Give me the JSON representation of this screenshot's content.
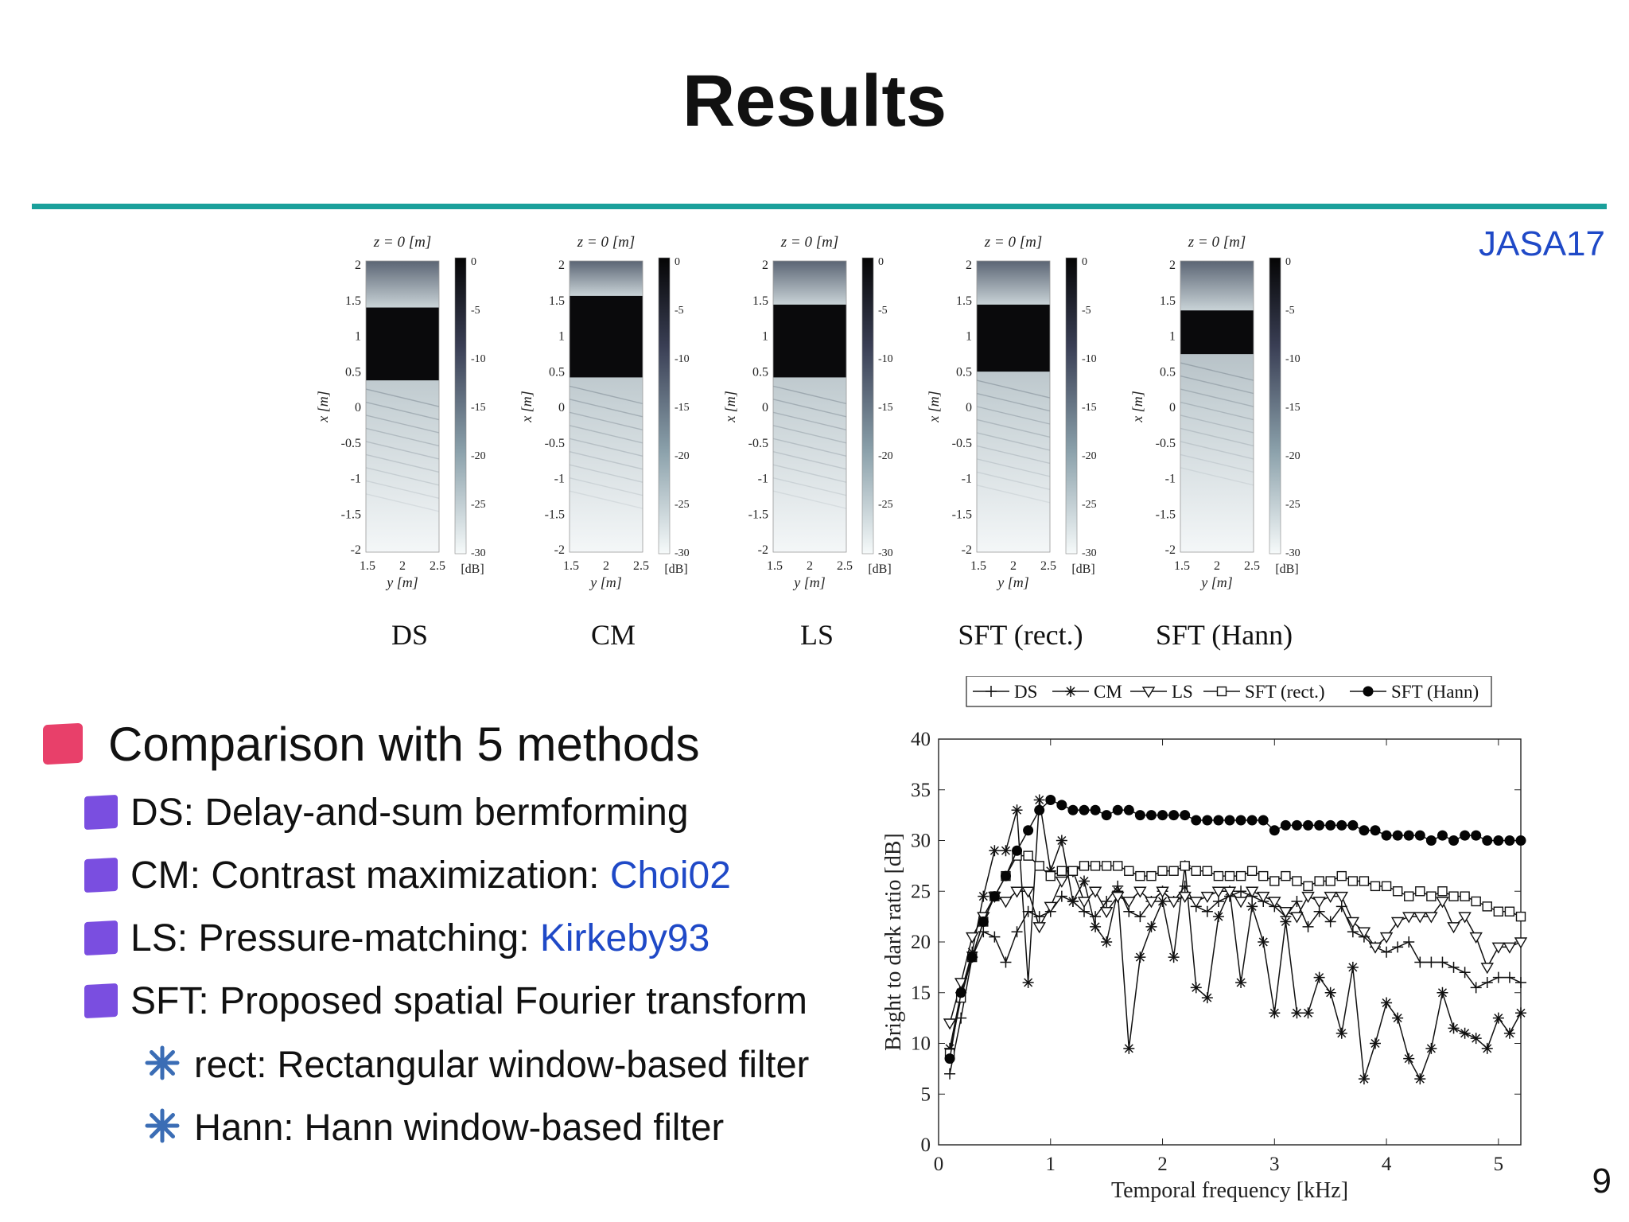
{
  "slide": {
    "title": "Results",
    "reference": "JASA17",
    "page_number": "9"
  },
  "maps": {
    "panel_title": "z = 0 [m]",
    "x_axis_label": "y [m]",
    "y_axis_label": "x [m]",
    "colorbar_unit": "[dB]",
    "x_ticks": [
      "1.5",
      "2",
      "2.5"
    ],
    "y_ticks": [
      "2",
      "1.5",
      "1",
      "0.5",
      "0",
      "-0.5",
      "-1",
      "-1.5",
      "-2"
    ],
    "colorbar_ticks": [
      "0",
      "-5",
      "-10",
      "-15",
      "-20",
      "-25",
      "-30"
    ],
    "methods": [
      "DS",
      "CM",
      "LS",
      "SFT (rect.)",
      "SFT (Hann)"
    ]
  },
  "bullets": {
    "main": "Comparison with 5 methods",
    "ds": "DS: Delay-and-sum bermforming",
    "cm_text": "CM: Contrast maximization: ",
    "cm_ref": "Choi02",
    "ls_text": "LS: Pressure-matching: ",
    "ls_ref": "Kirkeby93",
    "sft": "SFT: Proposed spatial Fourier transform",
    "rect": "rect: Rectangular window-based filter",
    "hann": "Hann: Hann window-based filter"
  },
  "colors": {
    "accent_rule": "#1aa09b",
    "link": "#1f49c7",
    "bullet_level1": "#e8406a",
    "bullet_level2": "#7a4ee0",
    "bullet_level3": "#3b6db5"
  },
  "chart_data": {
    "type": "line",
    "title": "",
    "xlabel": "Temporal frequency [kHz]",
    "ylabel": "Bright to dark ratio [dB]",
    "xlim": [
      0,
      5.2
    ],
    "ylim": [
      0,
      40
    ],
    "x_ticks": [
      0,
      1,
      2,
      3,
      4,
      5
    ],
    "y_ticks": [
      0,
      5,
      10,
      15,
      20,
      25,
      30,
      35,
      40
    ],
    "legend_placement": "top",
    "x": [
      0.1,
      0.2,
      0.3,
      0.4,
      0.5,
      0.6,
      0.7,
      0.8,
      0.9,
      1.0,
      1.1,
      1.2,
      1.3,
      1.4,
      1.5,
      1.6,
      1.7,
      1.8,
      1.9,
      2.0,
      2.1,
      2.2,
      2.3,
      2.4,
      2.5,
      2.6,
      2.7,
      2.8,
      2.9,
      3.0,
      3.1,
      3.2,
      3.3,
      3.4,
      3.5,
      3.6,
      3.7,
      3.8,
      3.9,
      4.0,
      4.1,
      4.2,
      4.3,
      4.4,
      4.5,
      4.6,
      4.7,
      4.8,
      4.9,
      5.0,
      5.1,
      5.2
    ],
    "series": [
      {
        "name": "DS",
        "marker": "plus",
        "values": [
          7,
          12.5,
          18.5,
          21,
          20.5,
          18,
          21,
          23,
          22.5,
          23,
          24.5,
          24,
          23,
          22.5,
          24,
          25.5,
          23,
          22.5,
          24,
          25,
          24,
          25.5,
          23.5,
          23,
          24,
          24.5,
          25,
          24.5,
          24,
          23.5,
          22.5,
          24,
          21.5,
          23,
          22,
          23.5,
          21,
          20.5,
          19.5,
          19,
          19.5,
          20,
          18,
          18,
          18,
          17.5,
          17,
          15.5,
          16,
          16.5,
          16.5,
          16
        ]
      },
      {
        "name": "CM",
        "marker": "asterisk",
        "values": [
          9.5,
          15,
          19,
          24.5,
          29,
          29,
          33,
          16,
          34,
          27,
          30,
          24,
          26,
          21.5,
          20,
          25,
          9.5,
          18.5,
          21.5,
          24,
          18.5,
          27.5,
          15.5,
          14.5,
          22.5,
          25,
          16,
          23.5,
          20,
          13,
          22,
          13,
          13,
          16.5,
          15,
          11,
          17.5,
          6.5,
          10,
          14,
          12.5,
          8.5,
          6.5,
          9.5,
          15,
          11.5,
          11,
          10.5,
          9.5,
          12.5,
          11,
          13
        ]
      },
      {
        "name": "LS",
        "marker": "triangle",
        "values": [
          12,
          16,
          20.5,
          22.5,
          24.5,
          24,
          25,
          25,
          21.5,
          23.5,
          26,
          27,
          24,
          25,
          23,
          24.5,
          24,
          25,
          24,
          25,
          24,
          24.5,
          24,
          24.5,
          25,
          25,
          24,
          25,
          24.5,
          24,
          23,
          22.5,
          24.5,
          24,
          24.5,
          24.5,
          22,
          21,
          19.5,
          20.5,
          22,
          22.5,
          22.5,
          22.5,
          24,
          21.5,
          22.5,
          20.5,
          17.5,
          19.5,
          19.5,
          20
        ]
      },
      {
        "name": "SFT (rect.)",
        "marker": "square",
        "values": [
          9,
          14.5,
          18.5,
          22,
          24.5,
          26.5,
          28.5,
          28.5,
          27.5,
          26.5,
          27,
          27,
          27.5,
          27.5,
          27.5,
          27.5,
          27,
          26.5,
          26.5,
          27,
          27,
          27.5,
          27,
          27,
          26.5,
          26.5,
          26.5,
          27,
          26.5,
          26,
          26.5,
          26,
          25.5,
          26,
          26,
          26.5,
          26,
          26,
          25.5,
          25.5,
          25,
          24.5,
          25,
          24.5,
          25,
          24.5,
          24.5,
          24,
          23.5,
          23,
          23,
          22.5
        ]
      },
      {
        "name": "SFT (Hann)",
        "marker": "circle",
        "values": [
          8.5,
          15,
          18.5,
          22,
          24.5,
          26.5,
          29,
          31,
          33,
          34,
          33.5,
          33,
          33,
          33,
          32.5,
          33,
          33,
          32.5,
          32.5,
          32.5,
          32.5,
          32.5,
          32,
          32,
          32,
          32,
          32,
          32,
          32,
          31,
          31.5,
          31.5,
          31.5,
          31.5,
          31.5,
          31.5,
          31.5,
          31,
          31,
          30.5,
          30.5,
          30.5,
          30.5,
          30,
          30.5,
          30,
          30.5,
          30.5,
          30,
          30,
          30,
          30
        ]
      }
    ]
  }
}
